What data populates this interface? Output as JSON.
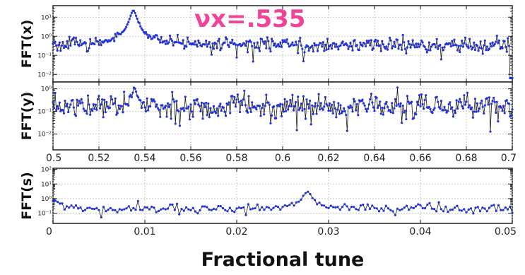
{
  "chart_data": [
    {
      "type": "line",
      "ylabel": "FFT(x)",
      "y_scale": "log",
      "ylim": [
        0.004,
        40
      ],
      "y_ticks": [
        {
          "value": 10,
          "label": "10¹"
        },
        {
          "value": 1,
          "label": "10⁰"
        },
        {
          "value": 0.1,
          "label": "10⁻¹"
        },
        {
          "value": 0.01,
          "label": "10⁻²"
        }
      ],
      "xlim": [
        0.5,
        0.7
      ],
      "x_ticks": [],
      "grid": true,
      "annotation": "νx=.535",
      "series": [
        {
          "color": "#2233dd",
          "profile": {
            "baseline": 0.35,
            "noise_decades": 0.35,
            "peaks": [
              {
                "x": 0.535,
                "height": 22,
                "width": 0.0012
              }
            ],
            "n_points": 420,
            "edge_drop_at": 0.699
          }
        }
      ]
    },
    {
      "type": "line",
      "ylabel": "FFT(y)",
      "y_scale": "log",
      "ylim": [
        0.002,
        2
      ],
      "y_ticks": [
        {
          "value": 1,
          "label": "10⁰"
        },
        {
          "value": 0.1,
          "label": "10⁻¹"
        },
        {
          "value": 0.01,
          "label": "10⁻²"
        }
      ],
      "xlim": [
        0.5,
        0.7
      ],
      "x_ticks": [
        {
          "value": 0.5,
          "label": "0.5"
        },
        {
          "value": 0.52,
          "label": "0.52"
        },
        {
          "value": 0.54,
          "label": "0.54"
        },
        {
          "value": 0.56,
          "label": "0.56"
        },
        {
          "value": 0.58,
          "label": "0.58"
        },
        {
          "value": 0.6,
          "label": "0.6"
        },
        {
          "value": 0.62,
          "label": "0.62"
        },
        {
          "value": 0.64,
          "label": "0.64"
        },
        {
          "value": 0.66,
          "label": "0.66"
        },
        {
          "value": 0.68,
          "label": "0.68"
        },
        {
          "value": 0.7,
          "label": "0.7"
        }
      ],
      "grid": true,
      "series": [
        {
          "color": "#2233dd",
          "profile": {
            "baseline": 0.17,
            "noise_decades": 0.5,
            "peaks": [
              {
                "x": 0.5355,
                "height": 0.9,
                "width": 0.001
              }
            ],
            "n_points": 420
          }
        }
      ]
    },
    {
      "type": "line",
      "ylabel": "FFT(s)",
      "y_scale": "log",
      "ylim": [
        0.02,
        120
      ],
      "y_ticks": [
        {
          "value": 100,
          "label": "10²"
        },
        {
          "value": 10,
          "label": "10¹"
        },
        {
          "value": 1,
          "label": "10⁰"
        },
        {
          "value": 0.1,
          "label": "10⁻¹"
        }
      ],
      "xlim": [
        0,
        0.05
      ],
      "x_ticks": [
        {
          "value": 0,
          "label": "0"
        },
        {
          "value": 0.01,
          "label": "0.01"
        },
        {
          "value": 0.02,
          "label": "0.02"
        },
        {
          "value": 0.03,
          "label": "0.03"
        },
        {
          "value": 0.04,
          "label": "0.04"
        },
        {
          "value": 0.05,
          "label": "0.05"
        }
      ],
      "grid": true,
      "xlabel": "Fractional tune",
      "series": [
        {
          "color": "#2233dd",
          "profile": {
            "baseline": 0.2,
            "noise_decades": 0.3,
            "peaks": [
              {
                "x": 0.0277,
                "height": 2.8,
                "width": 0.0004
              },
              {
                "x": 0.0,
                "height": 0.5,
                "width": 0.0008
              }
            ],
            "n_points": 200
          }
        }
      ]
    }
  ]
}
